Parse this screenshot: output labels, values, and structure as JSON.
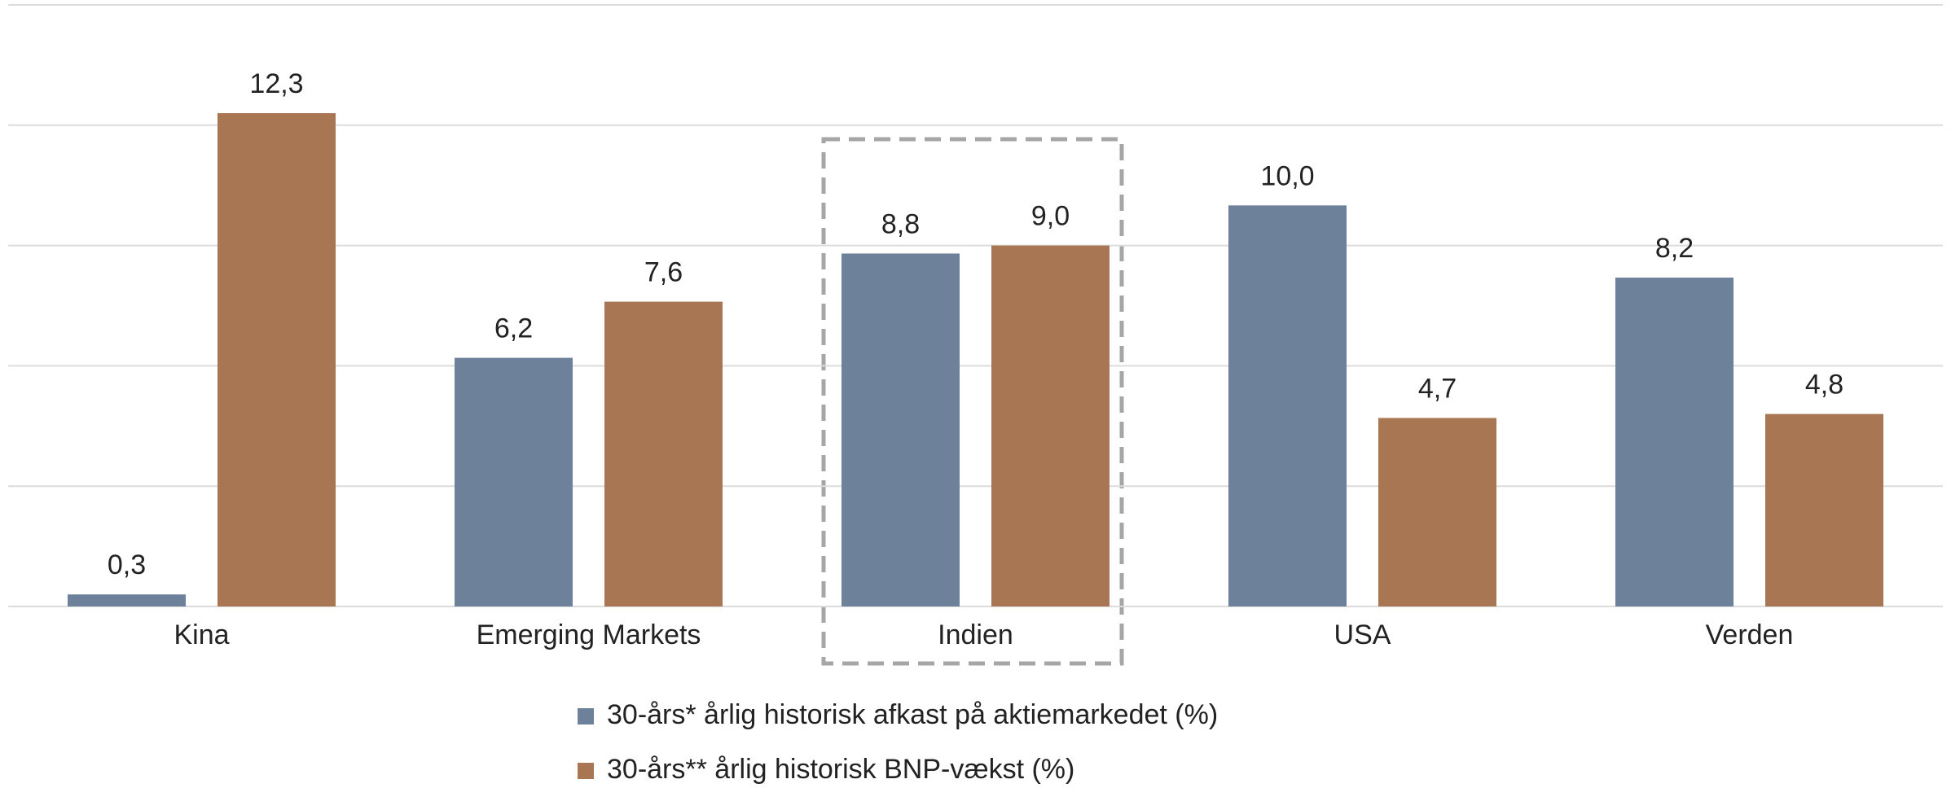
{
  "chart_data": {
    "type": "bar",
    "categories": [
      "Kina",
      "Emerging Markets",
      "Indien",
      "USA",
      "Verden"
    ],
    "series": [
      {
        "name": "30-års* årlig historisk afkast på aktiemarkedet (%)",
        "color": "#6d819b",
        "values": [
          0.3,
          6.2,
          8.8,
          10.0,
          8.2
        ],
        "value_labels": [
          "0,3",
          "6,2",
          "8,8",
          "10,0",
          "8,2"
        ]
      },
      {
        "name": "30-års** årlig historisk BNP-vækst (%)",
        "color": "#a97653",
        "values": [
          12.3,
          7.6,
          9.0,
          4.7,
          4.8
        ],
        "value_labels": [
          "12,3",
          "7,6",
          "9,0",
          "4,7",
          "4,8"
        ]
      }
    ],
    "ylim": [
      0,
      15
    ],
    "yticks": [
      0,
      3,
      6,
      9,
      12,
      15
    ],
    "grid": true
  }
}
